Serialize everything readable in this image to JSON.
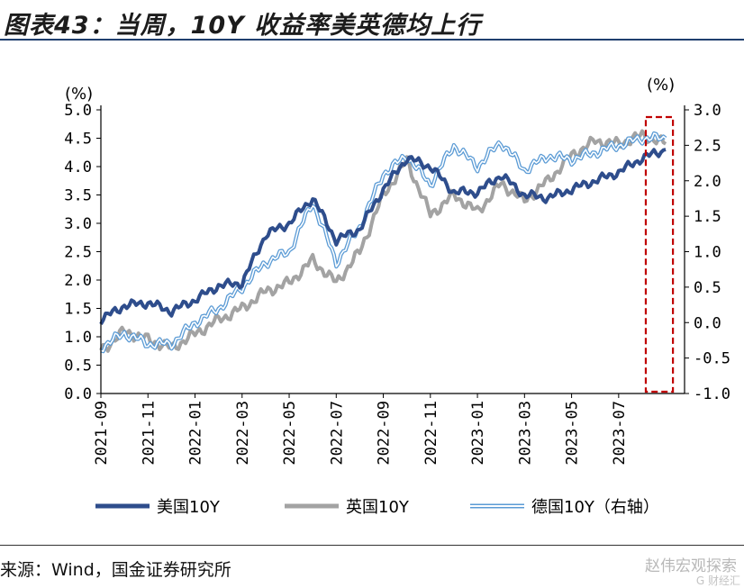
{
  "title": "图表43：当周，10Y 收益率美英德均上行",
  "source": "来源：Wind，国金证券研究所",
  "watermark": "赵伟宏观探索",
  "watermark_sub": "G 财经汇",
  "colors": {
    "us": "#2e4d8c",
    "uk": "#a3a3a3",
    "de": "#5b9bd5",
    "highlight": "#c00000",
    "rule": "#1f3f6e"
  },
  "chart_data": {
    "type": "line",
    "left_axis": {
      "unit": "(%)",
      "range": [
        0,
        5
      ],
      "ticks": [
        "0.0",
        "0.5",
        "1.0",
        "1.5",
        "2.0",
        "2.5",
        "3.0",
        "3.5",
        "4.0",
        "4.5",
        "5.0"
      ]
    },
    "right_axis": {
      "unit": "(%)",
      "range": [
        -1,
        3
      ],
      "ticks": [
        "-1.0",
        "-0.5",
        "0.0",
        "0.5",
        "1.0",
        "1.5",
        "2.0",
        "2.5",
        "3.0"
      ]
    },
    "x_ticks": [
      "2021-09",
      "2021-11",
      "2022-01",
      "2022-03",
      "2022-05",
      "2022-07",
      "2022-09",
      "2022-11",
      "2023-01",
      "2023-03",
      "2023-05",
      "2023-07"
    ],
    "highlight": {
      "from": "2023-08",
      "to": "2023-09",
      "style": "dashed-box"
    },
    "series": [
      {
        "name": "美国10Y",
        "axis": "left",
        "style": "thick",
        "points": [
          [
            "2021-09",
            1.3
          ],
          [
            "2021-10",
            1.55
          ],
          [
            "2021-11",
            1.6
          ],
          [
            "2021-12",
            1.45
          ],
          [
            "2022-01",
            1.65
          ],
          [
            "2022-02",
            1.9
          ],
          [
            "2022-03",
            1.95
          ],
          [
            "2022-04",
            2.8
          ],
          [
            "2022-05",
            3.0
          ],
          [
            "2022-06",
            3.45
          ],
          [
            "2022-07",
            2.7
          ],
          [
            "2022-08",
            2.9
          ],
          [
            "2022-09",
            3.6
          ],
          [
            "2022-10",
            4.15
          ],
          [
            "2022-11",
            4.0
          ],
          [
            "2022-12",
            3.55
          ],
          [
            "2023-01",
            3.55
          ],
          [
            "2023-02",
            3.85
          ],
          [
            "2023-03",
            3.5
          ],
          [
            "2023-04",
            3.45
          ],
          [
            "2023-05",
            3.6
          ],
          [
            "2023-06",
            3.75
          ],
          [
            "2023-07",
            3.9
          ],
          [
            "2023-08",
            4.15
          ],
          [
            "2023-09",
            4.3
          ]
        ]
      },
      {
        "name": "英国10Y",
        "axis": "left",
        "style": "thick",
        "points": [
          [
            "2021-09",
            0.75
          ],
          [
            "2021-10",
            1.1
          ],
          [
            "2021-11",
            0.95
          ],
          [
            "2021-12",
            0.8
          ],
          [
            "2022-01",
            1.05
          ],
          [
            "2022-02",
            1.3
          ],
          [
            "2022-03",
            1.5
          ],
          [
            "2022-04",
            1.8
          ],
          [
            "2022-05",
            1.95
          ],
          [
            "2022-06",
            2.35
          ],
          [
            "2022-07",
            1.95
          ],
          [
            "2022-08",
            2.5
          ],
          [
            "2022-09",
            3.5
          ],
          [
            "2022-10",
            4.1
          ],
          [
            "2022-11",
            3.15
          ],
          [
            "2022-12",
            3.5
          ],
          [
            "2023-01",
            3.2
          ],
          [
            "2023-02",
            3.7
          ],
          [
            "2023-03",
            3.4
          ],
          [
            "2023-04",
            3.75
          ],
          [
            "2023-05",
            4.2
          ],
          [
            "2023-06",
            4.45
          ],
          [
            "2023-07",
            4.4
          ],
          [
            "2023-08",
            4.55
          ],
          [
            "2023-09",
            4.4
          ]
        ]
      },
      {
        "name": "德国10Y（右轴）",
        "axis": "right",
        "style": "double",
        "points": [
          [
            "2021-09",
            -0.35
          ],
          [
            "2021-10",
            -0.15
          ],
          [
            "2021-11",
            -0.3
          ],
          [
            "2021-12",
            -0.3
          ],
          [
            "2022-01",
            0.0
          ],
          [
            "2022-02",
            0.2
          ],
          [
            "2022-03",
            0.5
          ],
          [
            "2022-04",
            0.85
          ],
          [
            "2022-05",
            1.0
          ],
          [
            "2022-06",
            1.7
          ],
          [
            "2022-07",
            0.85
          ],
          [
            "2022-08",
            1.35
          ],
          [
            "2022-09",
            2.1
          ],
          [
            "2022-10",
            2.35
          ],
          [
            "2022-11",
            1.95
          ],
          [
            "2022-12",
            2.5
          ],
          [
            "2023-01",
            2.2
          ],
          [
            "2023-02",
            2.55
          ],
          [
            "2023-03",
            2.15
          ],
          [
            "2023-04",
            2.35
          ],
          [
            "2023-05",
            2.3
          ],
          [
            "2023-06",
            2.4
          ],
          [
            "2023-07",
            2.5
          ],
          [
            "2023-08",
            2.6
          ],
          [
            "2023-09",
            2.6
          ]
        ]
      }
    ]
  }
}
